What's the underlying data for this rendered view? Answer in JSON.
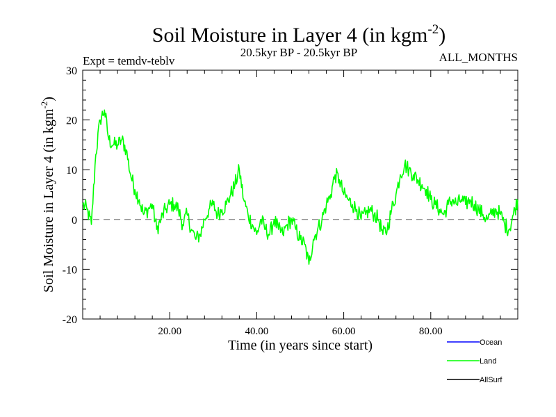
{
  "chart_data": {
    "type": "line",
    "title": "Soil Moisture in Layer 4 (in kgm",
    "title_sup": "-2",
    "title_end": ")",
    "subtitle": "20.5kyr BP - 20.5kyr BP",
    "expt_label": "Expt = temdv-teblv",
    "months_label": "ALL_MONTHS",
    "xlabel": "Time (in years since start)",
    "ylabel": "Soil Moisture in Layer 4 (in kgm",
    "ylabel_sup": "-2",
    "ylabel_end": ")",
    "xlim": [
      0,
      100
    ],
    "ylim": [
      -20,
      30
    ],
    "x_ticks": [
      20,
      40,
      60,
      80
    ],
    "x_tick_labels": [
      "20.00",
      "40.00",
      "60.00",
      "80.00"
    ],
    "y_ticks": [
      -20,
      -10,
      0,
      10,
      20,
      30
    ],
    "y_tick_labels": [
      "-20",
      "-10",
      "0",
      "10",
      "20",
      "30"
    ],
    "reference_line": 0,
    "legend": [
      {
        "name": "Ocean",
        "color": "#0000ff"
      },
      {
        "name": "Land",
        "color": "#00ff00"
      },
      {
        "name": "AllSurf",
        "color": "#000000"
      }
    ],
    "series": [
      {
        "name": "Land",
        "color": "#00ff00",
        "x": [
          0,
          1,
          2,
          3,
          4,
          5,
          6,
          7,
          8,
          9,
          10,
          11,
          12,
          13,
          14,
          15,
          16,
          17,
          18,
          19,
          20,
          21,
          22,
          23,
          24,
          25,
          26,
          27,
          28,
          29,
          30,
          31,
          32,
          33,
          34,
          35,
          36,
          37,
          38,
          39,
          40,
          41,
          42,
          43,
          44,
          45,
          46,
          47,
          48,
          49,
          50,
          51,
          52,
          53,
          54,
          55,
          56,
          57,
          58,
          59,
          60,
          61,
          62,
          63,
          64,
          65,
          66,
          67,
          68,
          69,
          70,
          71,
          72,
          73,
          74,
          75,
          76,
          77,
          78,
          79,
          80,
          81,
          82,
          83,
          84,
          85,
          86,
          87,
          88,
          89,
          90,
          91,
          92,
          93,
          94,
          95,
          96,
          97,
          98,
          99,
          100
        ],
        "values": [
          3,
          2,
          -1,
          13,
          20,
          22,
          16,
          15,
          15,
          16,
          14,
          9,
          6,
          4,
          1,
          2,
          3,
          -2,
          0,
          2,
          3,
          3,
          2,
          -1,
          1,
          -2,
          -4,
          -3,
          0,
          2,
          3,
          1,
          2,
          3,
          5,
          7,
          10,
          4,
          1,
          -1,
          -3,
          0,
          -2,
          -3,
          0,
          -2,
          -3,
          -1,
          0,
          -2,
          -4,
          -5,
          -9,
          -4,
          -2,
          0,
          3,
          5,
          9,
          8,
          5,
          4,
          3,
          2,
          0,
          1,
          2,
          1,
          0,
          -3,
          -2,
          2,
          5,
          9,
          11,
          10,
          9,
          8,
          7,
          6,
          4,
          3,
          2,
          1,
          3,
          4,
          3,
          4,
          3,
          4,
          3,
          2,
          1,
          0,
          1,
          2,
          1,
          -1,
          -2,
          1,
          4
        ]
      }
    ]
  }
}
